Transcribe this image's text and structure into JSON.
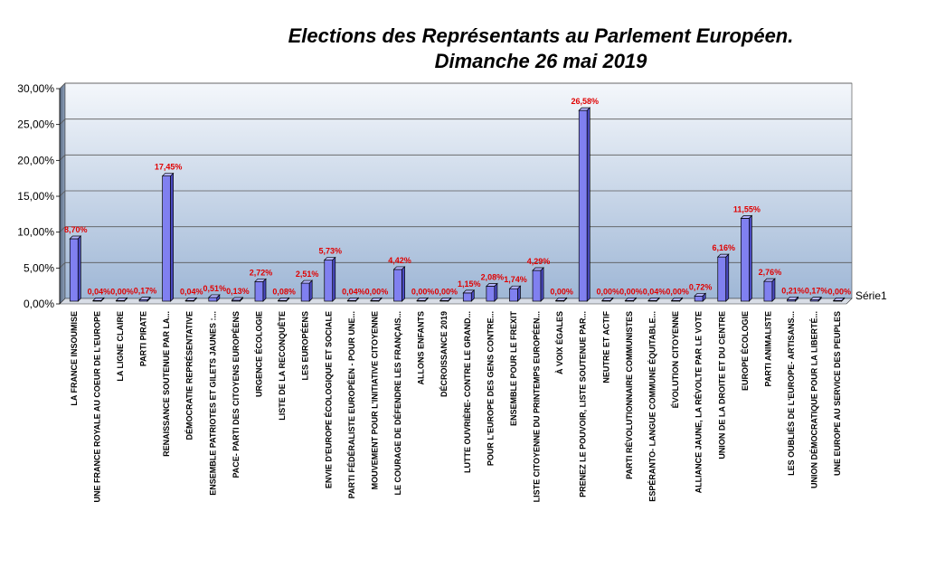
{
  "chart_data": {
    "type": "bar",
    "title": "Elections des Représentants au Parlement Européen.",
    "subtitle": "Dimanche 26 mai 2019",
    "ylim": [
      0,
      30
    ],
    "yticks": [
      "0,00%",
      "5,00%",
      "10,00%",
      "15,00%",
      "20,00%",
      "25,00%",
      "30,00%"
    ],
    "grid": true,
    "legend_position": "right",
    "bar_color": "#8080f0",
    "series": [
      {
        "name": "Série1",
        "values": [
          8.7,
          0.04,
          0.0,
          0.17,
          17.45,
          0.04,
          0.51,
          0.13,
          2.72,
          0.08,
          2.51,
          5.73,
          0.04,
          0.0,
          4.42,
          0.0,
          0.0,
          1.15,
          2.08,
          1.74,
          4.29,
          0.0,
          26.58,
          0.0,
          0.0,
          0.04,
          0.0,
          0.72,
          6.16,
          11.55,
          2.76,
          0.21,
          0.17,
          0.0
        ]
      }
    ],
    "data_labels": [
      "8,70%",
      "0,04%",
      "0,00%",
      "0,17%",
      "17,45%",
      "0,04%",
      "0,51%",
      "0,13%",
      "2,72%",
      "0,08%",
      "2,51%",
      "5,73%",
      "0,04%",
      "0,00%",
      "4,42%",
      "0,00%",
      "0,00%",
      "1,15%",
      "2,08%",
      "1,74%",
      "4,29%",
      "0,00%",
      "26,58%",
      "0,00%",
      "0,00%",
      "0,04%",
      "0,00%",
      "0,72%",
      "6,16%",
      "11,55%",
      "2,76%",
      "0,21%",
      "0,17%",
      "0,00%"
    ],
    "categories": [
      "LA FRANCE INSOUMISE",
      "UNE FRANCE ROYALE AU COEUR DE L'EUROPE",
      "LA LIGNE CLAIRE",
      "PARTI PIRATE",
      "RENAISSANCE SOUTENUE PAR LA...",
      "DÉMOCRATIE REPRÉSENTATIVE",
      "ENSEMBLE PATRIOTES ET GILETS JAUNES :...",
      "PACE- PARTI DES CITOYENS EUROPÉENS",
      "URGENCE ÉCOLOGIE",
      "LISTE DE LA RECONQUÊTE",
      "LES EUROPÉENS",
      "ENVIE D'EUROPE ÉCOLOGIQUE ET SOCIALE",
      "PARTI FÉDÉRALISTE EUROPÉEN - POUR UNE...",
      "MOUVEMENT POUR L'INITIATIVE CITOYENNE",
      "LE COURAGE DE DÉFENDRE LES FRANÇAIS...",
      "ALLONS ENFANTS",
      "DÉCROISSANCE 2019",
      "LUTTE OUVRIÈRE- CONTRE LE GRAND...",
      "POUR L'EUROPE DES GENS CONTRE...",
      "ENSEMBLE POUR LE FREXIT",
      "LISTE CITOYENNE DU PRINTEMPS EUROPÉEN...",
      "À VOIX ÉGALES",
      "PRENEZ LE POUVOIR, LISTE SOUTENUE PAR...",
      "NEUTRE ET ACTIF",
      "PARTI RÉVOLUTIONNAIRE COMMUNISTES",
      "ESPÉRANTO- LANGUE COMMUNE ÉQUITABLE...",
      "ÉVOLUTION CITOYENNE",
      "ALLIANCE JAUNE, LA RÉVOLTE PAR LE VOTE",
      "UNION DE LA DROITE ET DU CENTRE",
      "EUROPE ÉCOLOGIE",
      "PARTI ANIMALISTE",
      "LES OUBLIÉS DE L'EUROPE- ARTISANS...",
      "UNION DÉMOCRATIQUE POUR LA LIBERTÉ...",
      "UNE EUROPE AU SERVICE DES PEUPLES"
    ]
  }
}
